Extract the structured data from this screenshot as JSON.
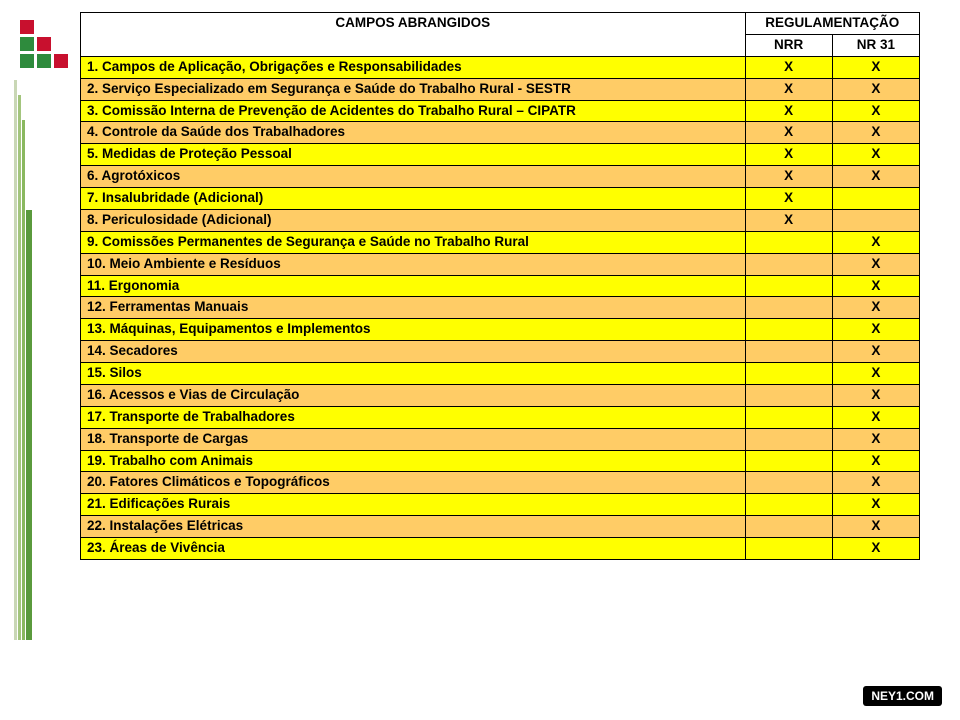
{
  "logo": {
    "cells": [
      {
        "color": "#c8102e"
      },
      {
        "color": "transparent"
      },
      {
        "color": "transparent"
      },
      {
        "color": "#2e8b3d"
      },
      {
        "color": "#c8102e"
      },
      {
        "color": "transparent"
      },
      {
        "color": "#2e8b3d"
      },
      {
        "color": "#2e8b3d"
      },
      {
        "color": "#c8102e"
      }
    ]
  },
  "headers": {
    "campos": "CAMPOS ABRANGIDOS",
    "reg": "REGULAMENTAÇÃO",
    "nrr": "NRR",
    "nr31": "NR 31"
  },
  "rows": [
    {
      "n": "1.",
      "label": "Campos de Aplicação, Obrigações e Responsabilidades",
      "nrr": "X",
      "nr31": "X",
      "cls": "yellow"
    },
    {
      "n": "2.",
      "label": "Serviço Especializado em Segurança e Saúde do Trabalho Rural - SESTR",
      "nrr": "X",
      "nr31": "X",
      "cls": "tan"
    },
    {
      "n": "3.",
      "label": "Comissão Interna de Prevenção de Acidentes do Trabalho Rural – CIPATR",
      "nrr": "X",
      "nr31": "X",
      "cls": "yellow"
    },
    {
      "n": "4.",
      "label": "Controle da Saúde dos Trabalhadores",
      "nrr": "X",
      "nr31": "X",
      "cls": "tan"
    },
    {
      "n": "5.",
      "label": "Medidas de Proteção Pessoal",
      "nrr": "X",
      "nr31": "X",
      "cls": "yellow"
    },
    {
      "n": "6.",
      "label": "Agrotóxicos",
      "nrr": "X",
      "nr31": "X",
      "cls": "tan"
    },
    {
      "n": "7.",
      "label": "Insalubridade (Adicional)",
      "nrr": "X",
      "nr31": "",
      "cls": "yellow"
    },
    {
      "n": "8.",
      "label": "Periculosidade (Adicional)",
      "nrr": "X",
      "nr31": "",
      "cls": "tan"
    },
    {
      "n": "9.",
      "label": "Comissões Permanentes de Segurança e Saúde no Trabalho Rural",
      "nrr": "",
      "nr31": "X",
      "cls": "yellow"
    },
    {
      "n": "10.",
      "label": "Meio Ambiente e Resíduos",
      "nrr": "",
      "nr31": "X",
      "cls": "tan"
    },
    {
      "n": "11.",
      "label": "Ergonomia",
      "nrr": "",
      "nr31": "X",
      "cls": "yellow"
    },
    {
      "n": "12.",
      "label": "Ferramentas Manuais",
      "nrr": "",
      "nr31": "X",
      "cls": "tan"
    },
    {
      "n": "13.",
      "label": "Máquinas, Equipamentos e Implementos",
      "nrr": "",
      "nr31": "X",
      "cls": "yellow"
    },
    {
      "n": "14.",
      "label": "Secadores",
      "nrr": "",
      "nr31": "X",
      "cls": "tan"
    },
    {
      "n": "15.",
      "label": "Silos",
      "nrr": "",
      "nr31": "X",
      "cls": "yellow"
    },
    {
      "n": "16.",
      "label": "Acessos e Vias de Circulação",
      "nrr": "",
      "nr31": "X",
      "cls": "tan"
    },
    {
      "n": "17.",
      "label": "Transporte de Trabalhadores",
      "nrr": "",
      "nr31": "X",
      "cls": "yellow"
    },
    {
      "n": "18.",
      "label": "Transporte de Cargas",
      "nrr": "",
      "nr31": "X",
      "cls": "tan"
    },
    {
      "n": "19.",
      "label": "Trabalho com Animais",
      "nrr": "",
      "nr31": "X",
      "cls": "yellow"
    },
    {
      "n": "20.",
      "label": "Fatores Climáticos e Topográficos",
      "nrr": "",
      "nr31": "X",
      "cls": "tan"
    },
    {
      "n": "21.",
      "label": "Edificações Rurais",
      "nrr": "",
      "nr31": "X",
      "cls": "yellow"
    },
    {
      "n": "22.",
      "label": "Instalações Elétricas",
      "nrr": "",
      "nr31": "X",
      "cls": "tan"
    },
    {
      "n": "23.",
      "label": "Áreas de Vivência",
      "nrr": "",
      "nr31": "X",
      "cls": "yellow"
    }
  ],
  "footer": "NEY1.COM"
}
